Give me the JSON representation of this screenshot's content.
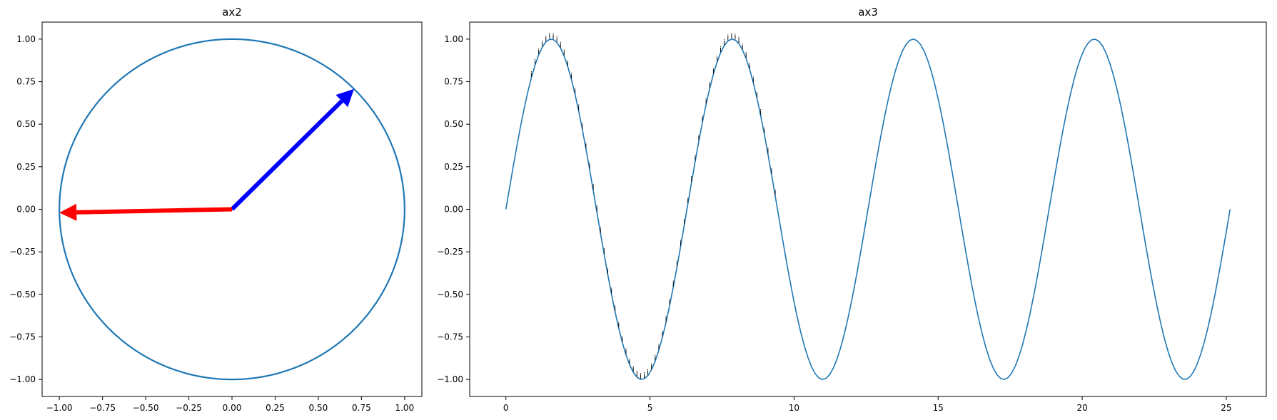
{
  "chart_data": [
    {
      "type": "line",
      "title": "ax2",
      "xlabel": "",
      "ylabel": "",
      "xlim": [
        -1.1,
        1.1
      ],
      "ylim": [
        -1.1,
        1.1
      ],
      "xticks": [
        -1.0,
        -0.75,
        -0.5,
        -0.25,
        0.0,
        0.25,
        0.5,
        0.75,
        1.0
      ],
      "xtick_labels": [
        "−1.00",
        "−0.75",
        "−0.50",
        "−0.25",
        "0.00",
        "0.25",
        "0.50",
        "0.75",
        "1.00"
      ],
      "yticks": [
        1.0,
        0.75,
        0.5,
        0.25,
        0.0,
        -0.25,
        -0.5,
        -0.75,
        -1.0
      ],
      "ytick_labels": [
        "1.00",
        "0.75",
        "0.50",
        "0.25",
        "0.00",
        "−0.25",
        "−0.50",
        "−0.75",
        "−1.00"
      ],
      "grid": false,
      "series": [
        {
          "kind": "circle",
          "center": [
            0,
            0
          ],
          "radius": 1.0,
          "color": "#1f77b4"
        }
      ],
      "arrows": [
        {
          "from": [
            0,
            0
          ],
          "to": [
            0.707,
            0.707
          ],
          "color": "#0000ff"
        },
        {
          "from": [
            0,
            0
          ],
          "to": [
            -1.0,
            -0.02
          ],
          "color": "#ff0000"
        }
      ]
    },
    {
      "type": "line",
      "title": "ax3",
      "xlabel": "",
      "ylabel": "",
      "xlim": [
        -1.257,
        26.389
      ],
      "ylim": [
        -1.1,
        1.1
      ],
      "xticks": [
        0,
        5,
        10,
        15,
        20,
        25
      ],
      "xtick_labels": [
        "0",
        "5",
        "10",
        "15",
        "20",
        "25"
      ],
      "yticks": [
        1.0,
        0.75,
        0.5,
        0.25,
        0.0,
        -0.25,
        -0.5,
        -0.75,
        -1.0
      ],
      "ytick_labels": [
        "1.00",
        "0.75",
        "0.50",
        "0.25",
        "0.00",
        "−0.25",
        "−0.50",
        "−0.75",
        "−1.00"
      ],
      "grid": false,
      "series": [
        {
          "function": "sin",
          "x_start": 0,
          "x_end": 25.1327,
          "samples": 200,
          "color": "#1f77b4"
        }
      ],
      "annotation_text": "i",
      "annotation_x": [
        0.884,
        1.011,
        1.137,
        1.263,
        1.389,
        1.516,
        1.642,
        1.768,
        1.895,
        2.021,
        2.147,
        2.274,
        2.4,
        2.526,
        2.652,
        2.779,
        2.905,
        3.031,
        3.158,
        3.284,
        3.41,
        3.537,
        3.663,
        3.789,
        3.915,
        4.042,
        4.168,
        4.294,
        4.421,
        4.547,
        4.673,
        4.8,
        4.926,
        5.052,
        5.178,
        5.305,
        5.431,
        5.557,
        5.684,
        5.81,
        5.936,
        6.063,
        6.189,
        6.315,
        6.441,
        6.568,
        6.694,
        6.82,
        6.947,
        7.073,
        7.199,
        7.326,
        7.452,
        7.578,
        7.704,
        7.831,
        7.957,
        8.083,
        8.21,
        8.336,
        8.462,
        8.589,
        8.715,
        8.841,
        8.967,
        9.094,
        9.22,
        9.346
      ]
    }
  ]
}
